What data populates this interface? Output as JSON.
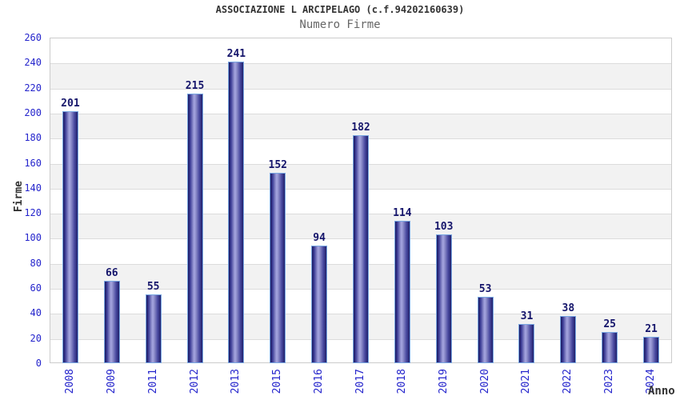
{
  "chart_data": {
    "type": "bar",
    "title": "ASSOCIAZIONE L ARCIPELAGO (c.f.94202160639)",
    "subtitle": "Numero Firme",
    "xlabel": "Anno",
    "ylabel": "Firme",
    "categories": [
      "2008",
      "2009",
      "2011",
      "2012",
      "2013",
      "2015",
      "2016",
      "2017",
      "2018",
      "2019",
      "2020",
      "2021",
      "2022",
      "2023",
      "2024"
    ],
    "values": [
      201,
      66,
      55,
      215,
      241,
      152,
      94,
      182,
      114,
      103,
      53,
      31,
      38,
      25,
      21
    ],
    "ylim": [
      0,
      260
    ],
    "ytick_step": 20,
    "ytick_labels": [
      "0",
      "20",
      "40",
      "60",
      "80",
      "100",
      "120",
      "140",
      "160",
      "180",
      "200",
      "220",
      "240",
      "260"
    ],
    "grid": "alternating horizontal bands every 20 units with light gridlines",
    "legend": "none",
    "colors": {
      "axis_tick_blue": "#2424cc",
      "value_label_navy": "#15156b",
      "bar_edge_navy": "#191960",
      "bar_center_light": "#a6a6e0",
      "bar_border_lightblue": "#79a7e2",
      "band_gray": "#f2f2f2",
      "gridline": "#dcdcdc",
      "plot_border": "#cccccc",
      "title_color": "#333333",
      "subtitle_color": "#666666",
      "background": "#ffffff"
    }
  }
}
